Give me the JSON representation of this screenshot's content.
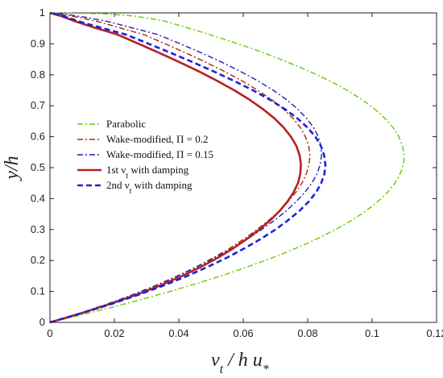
{
  "chart_data": {
    "type": "line",
    "xlabel": "ν_t / h u_*",
    "ylabel": "y/h",
    "xlim": [
      0,
      0.12
    ],
    "ylim": [
      0,
      1
    ],
    "xticks": [
      "0",
      "0.02",
      "0.04",
      "0.06",
      "0.08",
      "0.1",
      "0.12"
    ],
    "yticks": [
      "0",
      "0.1",
      "0.2",
      "0.3",
      "0.4",
      "0.5",
      "0.6",
      "0.7",
      "0.8",
      "0.9",
      "1"
    ],
    "grid": false,
    "legend_position": "middle-left",
    "series": [
      {
        "name": "Parabolic",
        "legend_label": "Parabolic",
        "color": "#66cc00",
        "style": "dash-dot",
        "x": [
          0,
          0.0101,
          0.0197,
          0.0287,
          0.0373,
          0.0454,
          0.053,
          0.0601,
          0.0668,
          0.073,
          0.0787,
          0.0839,
          0.0886,
          0.0929,
          0.0967,
          0.1,
          0.1028,
          0.1052,
          0.1071,
          0.1085,
          0.1094,
          0.1099,
          0.1098,
          0.1093,
          0.1083,
          0.1068,
          0.1048,
          0.1024,
          0.0995,
          0.0961,
          0.0922,
          0.0878,
          0.0829,
          0.0775,
          0.0716,
          0.0653,
          0.0584,
          0.0511,
          0.0433,
          0.035,
          0.0262,
          0.0169,
          0.0071,
          0
        ],
        "y": [
          0,
          0.025,
          0.05,
          0.075,
          0.1,
          0.125,
          0.15,
          0.175,
          0.2,
          0.225,
          0.25,
          0.275,
          0.3,
          0.325,
          0.35,
          0.375,
          0.4,
          0.425,
          0.45,
          0.475,
          0.5,
          0.525,
          0.55,
          0.575,
          0.6,
          0.625,
          0.65,
          0.675,
          0.7,
          0.725,
          0.75,
          0.775,
          0.8,
          0.825,
          0.85,
          0.875,
          0.9,
          0.925,
          0.95,
          0.975,
          0.99,
          0.997,
          0.999,
          1
        ]
      },
      {
        "name": "Wake-modified, Π = 0.2",
        "legend_label": "Wake-modified, Π = 0.2",
        "color": "#a62a0a",
        "style": "dash-dot",
        "x": [
          0,
          0.0094,
          0.018,
          0.0258,
          0.033,
          0.0395,
          0.0455,
          0.0509,
          0.0559,
          0.0603,
          0.0643,
          0.0679,
          0.0711,
          0.0739,
          0.0763,
          0.0782,
          0.0796,
          0.0804,
          0.0807,
          0.0803,
          0.0793,
          0.0777,
          0.0754,
          0.0724,
          0.0688,
          0.0645,
          0.0597,
          0.0543,
          0.0485,
          0.0423,
          0.0358,
          0.0291,
          0.0223,
          0.0156,
          0.0091,
          0.0032,
          0
        ],
        "y": [
          0,
          0.03,
          0.06,
          0.09,
          0.12,
          0.15,
          0.18,
          0.21,
          0.24,
          0.27,
          0.3,
          0.33,
          0.36,
          0.39,
          0.42,
          0.45,
          0.48,
          0.51,
          0.54,
          0.57,
          0.6,
          0.63,
          0.66,
          0.69,
          0.72,
          0.75,
          0.78,
          0.81,
          0.84,
          0.87,
          0.9,
          0.93,
          0.95,
          0.97,
          0.985,
          0.996,
          1
        ]
      },
      {
        "name": "Wake-modified, Π = 0.15",
        "legend_label": "Wake-modified, Π = 0.15",
        "color": "#1f22b5",
        "style": "dash-dot",
        "x": [
          0,
          0.0094,
          0.018,
          0.0259,
          0.0331,
          0.0397,
          0.0458,
          0.0514,
          0.0566,
          0.0614,
          0.0657,
          0.0697,
          0.0733,
          0.0764,
          0.0791,
          0.0813,
          0.0829,
          0.0839,
          0.0843,
          0.0841,
          0.0833,
          0.0818,
          0.0796,
          0.0768,
          0.0734,
          0.0693,
          0.0646,
          0.0593,
          0.0535,
          0.0472,
          0.0405,
          0.0335,
          0.0262,
          0.0188,
          0.0116,
          0.0045,
          0
        ],
        "y": [
          0,
          0.03,
          0.06,
          0.09,
          0.12,
          0.15,
          0.18,
          0.21,
          0.24,
          0.27,
          0.3,
          0.33,
          0.36,
          0.39,
          0.42,
          0.45,
          0.48,
          0.51,
          0.54,
          0.57,
          0.6,
          0.63,
          0.66,
          0.69,
          0.72,
          0.75,
          0.78,
          0.81,
          0.84,
          0.87,
          0.9,
          0.93,
          0.95,
          0.97,
          0.985,
          0.996,
          1
        ]
      },
      {
        "name": "1st ν_t with damping",
        "legend_label": "1st ν",
        "legend_sub": "t",
        "legend_suffix": " with damping",
        "color": "#b22222",
        "style": "solid",
        "x": [
          0,
          0.0098,
          0.0188,
          0.027,
          0.0344,
          0.041,
          0.047,
          0.0523,
          0.057,
          0.0612,
          0.065,
          0.0684,
          0.0713,
          0.0737,
          0.0756,
          0.077,
          0.0777,
          0.0779,
          0.0775,
          0.0765,
          0.0748,
          0.0725,
          0.0696,
          0.066,
          0.0619,
          0.0572,
          0.052,
          0.0464,
          0.0404,
          0.0341,
          0.0276,
          0.021,
          0.0146,
          0.0086,
          0.0034,
          0
        ],
        "y": [
          0,
          0.03,
          0.06,
          0.09,
          0.12,
          0.15,
          0.18,
          0.21,
          0.24,
          0.27,
          0.3,
          0.33,
          0.36,
          0.39,
          0.42,
          0.45,
          0.48,
          0.51,
          0.54,
          0.57,
          0.6,
          0.63,
          0.66,
          0.69,
          0.72,
          0.75,
          0.78,
          0.81,
          0.84,
          0.87,
          0.9,
          0.93,
          0.95,
          0.97,
          0.99,
          1
        ]
      },
      {
        "name": "2nd ν_t with damping",
        "legend_label": "2nd ν",
        "legend_sub": "t",
        "legend_suffix": " with damping",
        "color": "#1f22d8",
        "style": "dashed",
        "x": [
          0,
          0.01,
          0.0192,
          0.0277,
          0.0355,
          0.0426,
          0.0491,
          0.0551,
          0.0605,
          0.0655,
          0.07,
          0.0739,
          0.0774,
          0.0803,
          0.0826,
          0.0842,
          0.0852,
          0.0855,
          0.0851,
          0.0841,
          0.0824,
          0.0799,
          0.0767,
          0.0728,
          0.0682,
          0.063,
          0.0572,
          0.051,
          0.0445,
          0.0377,
          0.0307,
          0.0236,
          0.0166,
          0.0098,
          0.004,
          0
        ],
        "y": [
          0,
          0.03,
          0.06,
          0.09,
          0.12,
          0.15,
          0.18,
          0.21,
          0.24,
          0.27,
          0.3,
          0.33,
          0.36,
          0.39,
          0.42,
          0.45,
          0.48,
          0.51,
          0.54,
          0.57,
          0.6,
          0.63,
          0.66,
          0.69,
          0.72,
          0.75,
          0.78,
          0.81,
          0.84,
          0.87,
          0.9,
          0.93,
          0.95,
          0.97,
          0.99,
          1
        ]
      }
    ]
  }
}
